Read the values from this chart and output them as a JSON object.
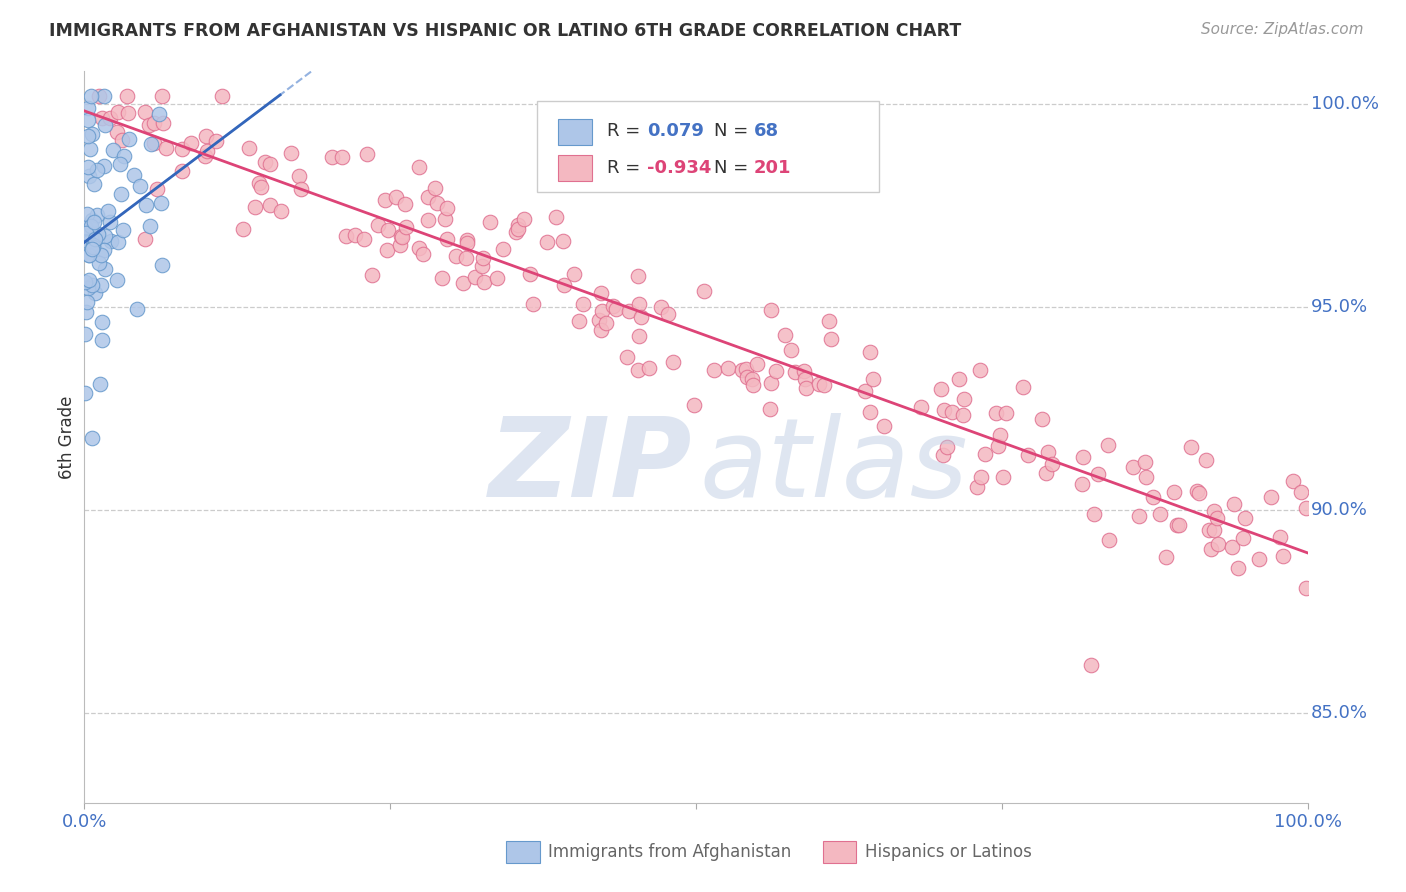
{
  "title": "IMMIGRANTS FROM AFGHANISTAN VS HISPANIC OR LATINO 6TH GRADE CORRELATION CHART",
  "source": "Source: ZipAtlas.com",
  "ylabel": "6th Grade",
  "ytick_labels": [
    "100.0%",
    "95.0%",
    "90.0%",
    "85.0%"
  ],
  "ytick_values": [
    1.0,
    0.95,
    0.9,
    0.85
  ],
  "xlim": [
    0.0,
    1.0
  ],
  "ylim": [
    0.828,
    1.008
  ],
  "legend_blue_r": "0.079",
  "legend_blue_n": "68",
  "legend_pink_r": "-0.934",
  "legend_pink_n": "201",
  "blue_fill": "#aec6e8",
  "blue_edge": "#6699cc",
  "pink_fill": "#f4b8c1",
  "pink_edge": "#e07090",
  "blue_trendline_color": "#3366bb",
  "pink_trendline_color": "#dd4477",
  "blue_dash_color": "#88aadd",
  "text_color": "#333333",
  "axis_label_color": "#4472c4",
  "grid_color": "#cccccc",
  "watermark_zip_color": "#c8d4e8",
  "watermark_atlas_color": "#b8c8e0"
}
